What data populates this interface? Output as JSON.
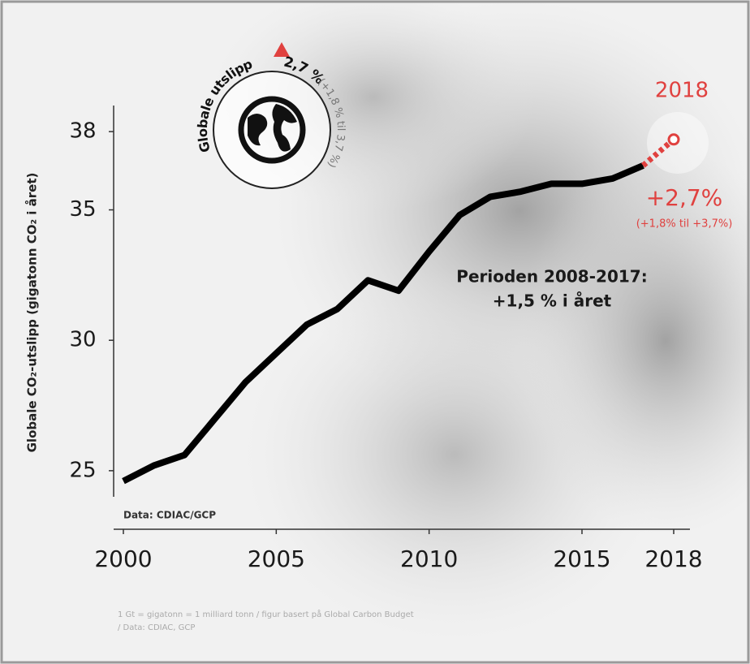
{
  "chart_data": {
    "type": "line",
    "y_label": "Globale CO₂-utslipp (gigatonn CO₂ i året)",
    "x": [
      2000,
      2001,
      2002,
      2003,
      2004,
      2005,
      2006,
      2007,
      2008,
      2009,
      2010,
      2011,
      2012,
      2013,
      2014,
      2015,
      2016,
      2017,
      2018
    ],
    "series": [
      {
        "color": "#000000",
        "values": [
          24.6,
          25.2,
          25.6,
          27.0,
          28.4,
          29.5,
          30.6,
          31.2,
          32.3,
          31.9,
          33.4,
          34.8,
          35.5,
          35.7,
          36.0,
          36.0,
          36.2,
          36.7,
          null
        ]
      },
      {
        "color": "#e0413f",
        "dashed": true,
        "values": [
          null,
          null,
          null,
          null,
          null,
          null,
          null,
          null,
          null,
          null,
          null,
          null,
          null,
          null,
          null,
          null,
          null,
          36.7,
          37.7
        ]
      }
    ],
    "xlim": [
      2000,
      2018
    ],
    "xticks": [
      2000,
      2005,
      2010,
      2015,
      2018
    ],
    "ylim": [
      24,
      39
    ],
    "yticks": [
      25,
      30,
      35,
      38
    ],
    "source": "Data: CDIAC/GCP",
    "period_note": [
      "Perioden 2008-2017:",
      "+1,5 % i året"
    ],
    "projection": {
      "year": "2018",
      "change": "+2,7%",
      "range": "(+1,8% til +3,7%)"
    },
    "badge": {
      "label": "Globale utslipp",
      "change": "2,7 %",
      "range": "(+1,8 % til 3,7 %)"
    },
    "footnote": [
      "1 Gt = gigatonn = 1 milliard tonn / figur basert på Global Carbon Budget",
      "/ Data: CDIAC, GCP"
    ]
  }
}
